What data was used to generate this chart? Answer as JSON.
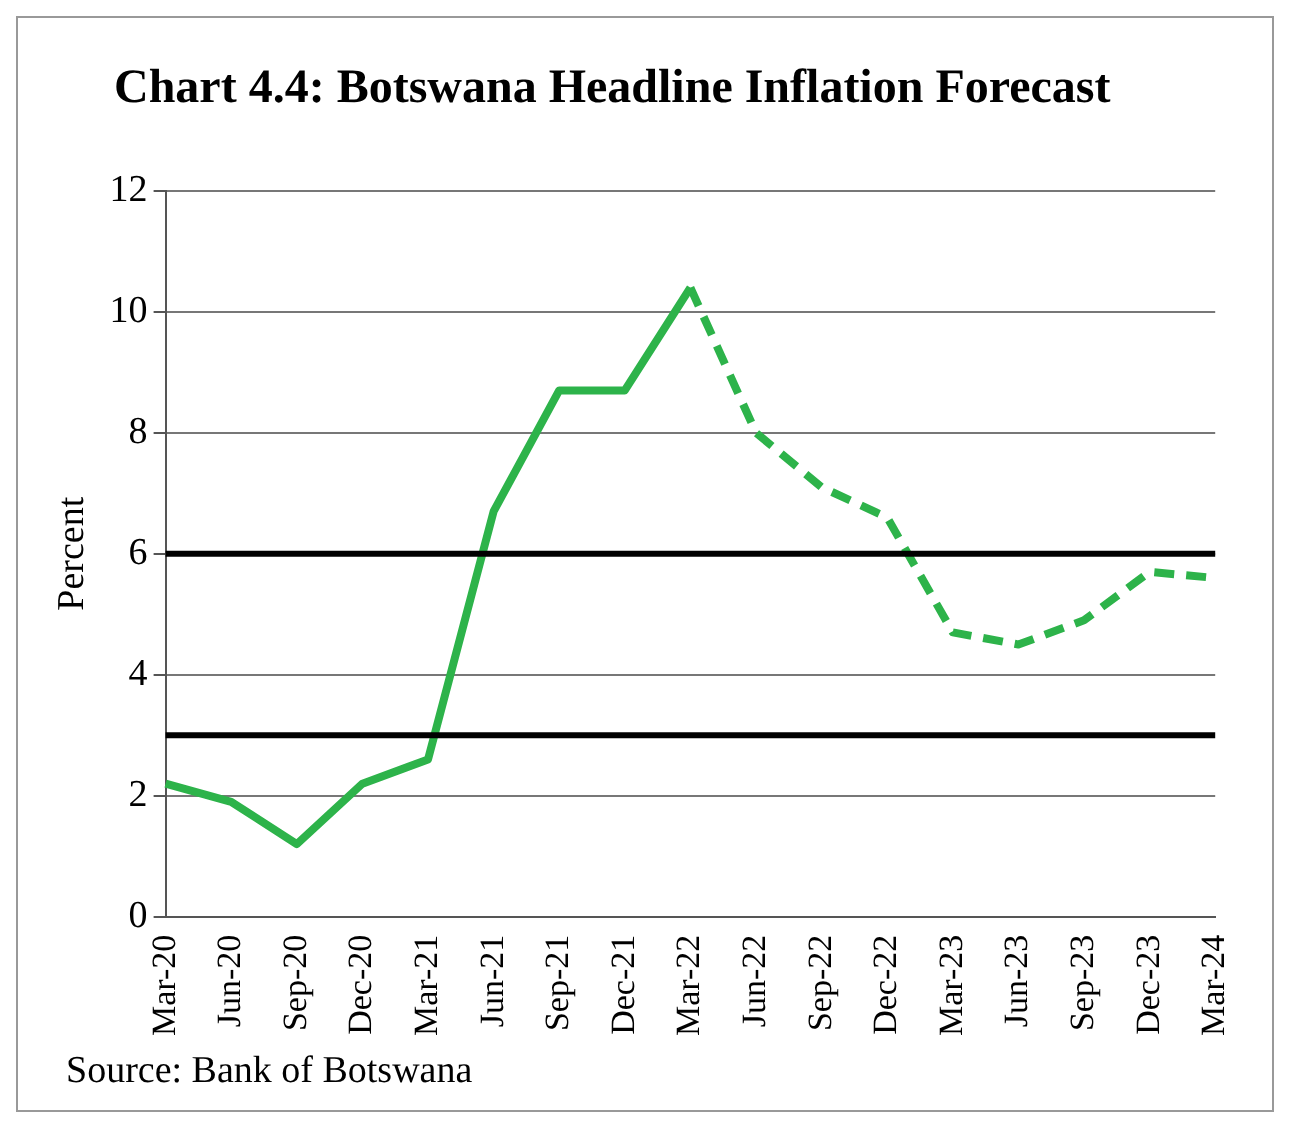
{
  "chart_data": {
    "type": "line",
    "title": "Chart 4.4: Botswana Headline Inflation Forecast",
    "ylabel": "Percent",
    "categories": [
      "Mar-20",
      "Jun-20",
      "Sep-20",
      "Dec-20",
      "Mar-21",
      "Jun-21",
      "Sep-21",
      "Dec-21",
      "Mar-22",
      "Jun-22",
      "Sep-22",
      "Dec-22",
      "Mar-23",
      "Jun-23",
      "Sep-23",
      "Dec-23",
      "Mar-24"
    ],
    "series": [
      {
        "color": "#2db34a",
        "line_style": "solid",
        "values": [
          2.2,
          1.9,
          1.2,
          2.2,
          2.6,
          6.7,
          8.7,
          8.7,
          10.4,
          null,
          null,
          null,
          null,
          null,
          null,
          null,
          null
        ]
      },
      {
        "color": "#2db34a",
        "line_style": "dashed",
        "values": [
          null,
          null,
          null,
          null,
          null,
          null,
          null,
          null,
          10.4,
          8.0,
          7.1,
          6.6,
          4.7,
          4.5,
          4.9,
          5.7,
          5.6
        ]
      }
    ],
    "ylim": [
      0,
      12
    ],
    "yticks": [
      0,
      2,
      4,
      6,
      8,
      10,
      12
    ],
    "grid": "y",
    "marker": "none",
    "ref_lines": [
      {
        "axis": "y",
        "value": 3,
        "color": "#000000"
      },
      {
        "axis": "y",
        "value": 6,
        "color": "#000000"
      }
    ],
    "annotations": [
      "Source: Bank of Botswana"
    ]
  }
}
